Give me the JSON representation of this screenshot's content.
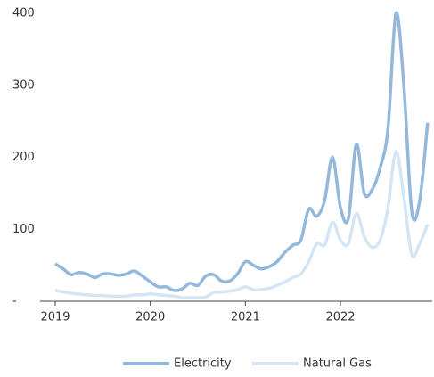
{
  "chart_data": {
    "type": "line",
    "categories": [
      "2019",
      null,
      null,
      null,
      null,
      null,
      null,
      null,
      null,
      null,
      null,
      null,
      "2020",
      null,
      null,
      null,
      null,
      null,
      null,
      null,
      null,
      null,
      null,
      null,
      "2021",
      null,
      null,
      null,
      null,
      null,
      null,
      null,
      null,
      null,
      null,
      null,
      "2022",
      null,
      null,
      null,
      null,
      null,
      null,
      null,
      null,
      null,
      null,
      null
    ],
    "series": [
      {
        "name": "Electricity",
        "color": "#93b8dc",
        "values": [
          52,
          45,
          37,
          40,
          38,
          33,
          38,
          38,
          36,
          38,
          42,
          35,
          27,
          20,
          20,
          15,
          17,
          25,
          22,
          35,
          37,
          28,
          28,
          38,
          55,
          50,
          45,
          48,
          55,
          68,
          78,
          85,
          128,
          118,
          140,
          200,
          130,
          115,
          218,
          150,
          155,
          185,
          240,
          400,
          300,
          125,
          140,
          248
        ]
      },
      {
        "name": "Natural Gas",
        "color": "#d4e6f5",
        "values": [
          15,
          13,
          11,
          10,
          9,
          8,
          8,
          7,
          7,
          7,
          9,
          9,
          10,
          9,
          8,
          7,
          5,
          5,
          5,
          6,
          12,
          13,
          14,
          16,
          20,
          16,
          16,
          18,
          22,
          27,
          33,
          38,
          55,
          80,
          78,
          110,
          85,
          80,
          122,
          90,
          75,
          85,
          130,
          208,
          145,
          65,
          80,
          107
        ]
      }
    ],
    "ylim": [
      0,
      400
    ],
    "yticks": [
      {
        "value": 0,
        "label": "-"
      },
      100,
      200,
      300,
      400
    ],
    "legend": "bottom"
  }
}
